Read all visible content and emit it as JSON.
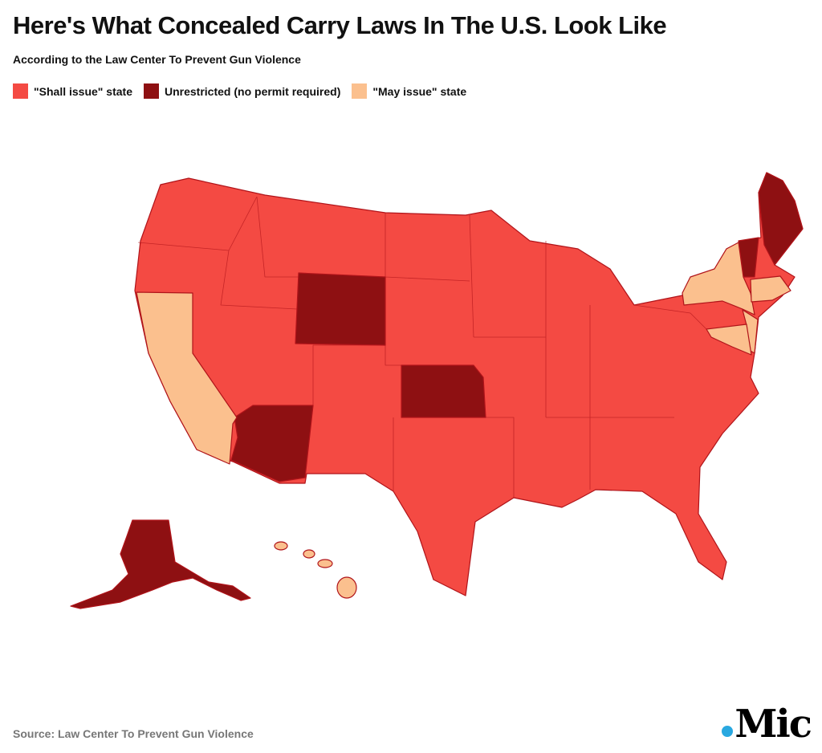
{
  "title": "Here's What Concealed Carry Laws In The U.S. Look Like",
  "subtitle": "According to the Law Center To Prevent Gun Violence",
  "legend": [
    {
      "label": "\"Shall issue\" state",
      "color": "#f44a43"
    },
    {
      "label": "Unrestricted (no permit required)",
      "color": "#8e1012"
    },
    {
      "label": "\"May issue\" state",
      "color": "#fbc08e"
    }
  ],
  "map": {
    "border_color": "#b0141a",
    "unrestricted_states": [
      "Wyoming",
      "Kansas",
      "Arizona",
      "Alaska",
      "Vermont",
      "Maine"
    ],
    "may_issue_states": [
      "California",
      "New York",
      "New Jersey",
      "Maryland",
      "Massachusetts",
      "Connecticut",
      "Delaware",
      "Hawaii"
    ]
  },
  "source": "Source: Law Center To Prevent Gun Violence",
  "logo": "Mic"
}
